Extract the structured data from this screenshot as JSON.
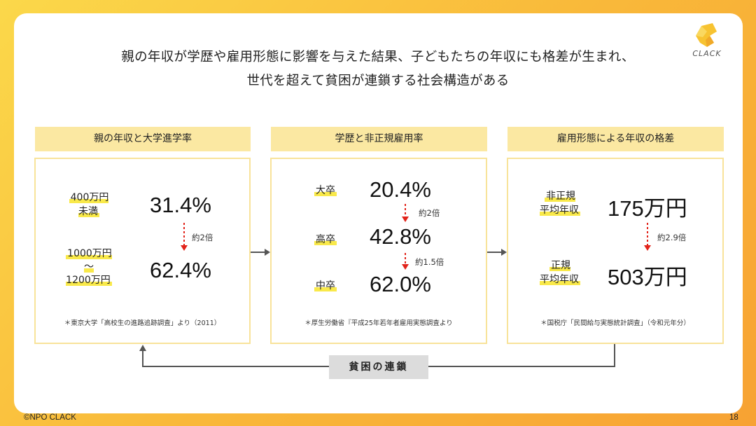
{
  "headline": {
    "line1": "親の年収が学歴や雇用形態に影響を与えた結果、子どもたちの年収にも格差が生まれ、",
    "line2": "世代を超えて貧困が連鎖する社会構造がある"
  },
  "logo": {
    "text": "CLACK"
  },
  "panels": [
    {
      "title": "親の年収と大学進学率",
      "rows": [
        {
          "label": "400万円\n未満",
          "value": "31.4%"
        },
        {
          "label": "1000万円\n〜\n1200万円",
          "value": "62.4%"
        }
      ],
      "ratios": [
        "約2倍"
      ],
      "note": "＊東京大学「高校生の進路追跡調査」より（2011）"
    },
    {
      "title": "学歴と非正規雇用率",
      "rows": [
        {
          "label": "大卒",
          "value": "20.4%"
        },
        {
          "label": "高卒",
          "value": "42.8%"
        },
        {
          "label": "中卒",
          "value": "62.0%"
        }
      ],
      "ratios": [
        "約2倍",
        "約1.5倍"
      ],
      "note": "＊厚生労働省『平成25年若年者雇用実態調査より"
    },
    {
      "title": "雇用形態による年収の格差",
      "rows": [
        {
          "label": "非正規\n平均年収",
          "value": "175万円"
        },
        {
          "label": "正規\n平均年収",
          "value": "503万円"
        }
      ],
      "ratios": [
        "約2.9倍"
      ],
      "note": "＊国税庁「民間給与実態統計調査」（令和元年分）"
    }
  ],
  "chain_label": "貧困の連鎖",
  "footer": {
    "copyright": "©NPO CLACK",
    "page": "18"
  },
  "colors": {
    "accent_red": "#e2231a",
    "highlight": "#f9e94a",
    "panel_head": "#fbe8a2",
    "panel_border": "#f8e39a",
    "arrow_gray": "#555555"
  }
}
